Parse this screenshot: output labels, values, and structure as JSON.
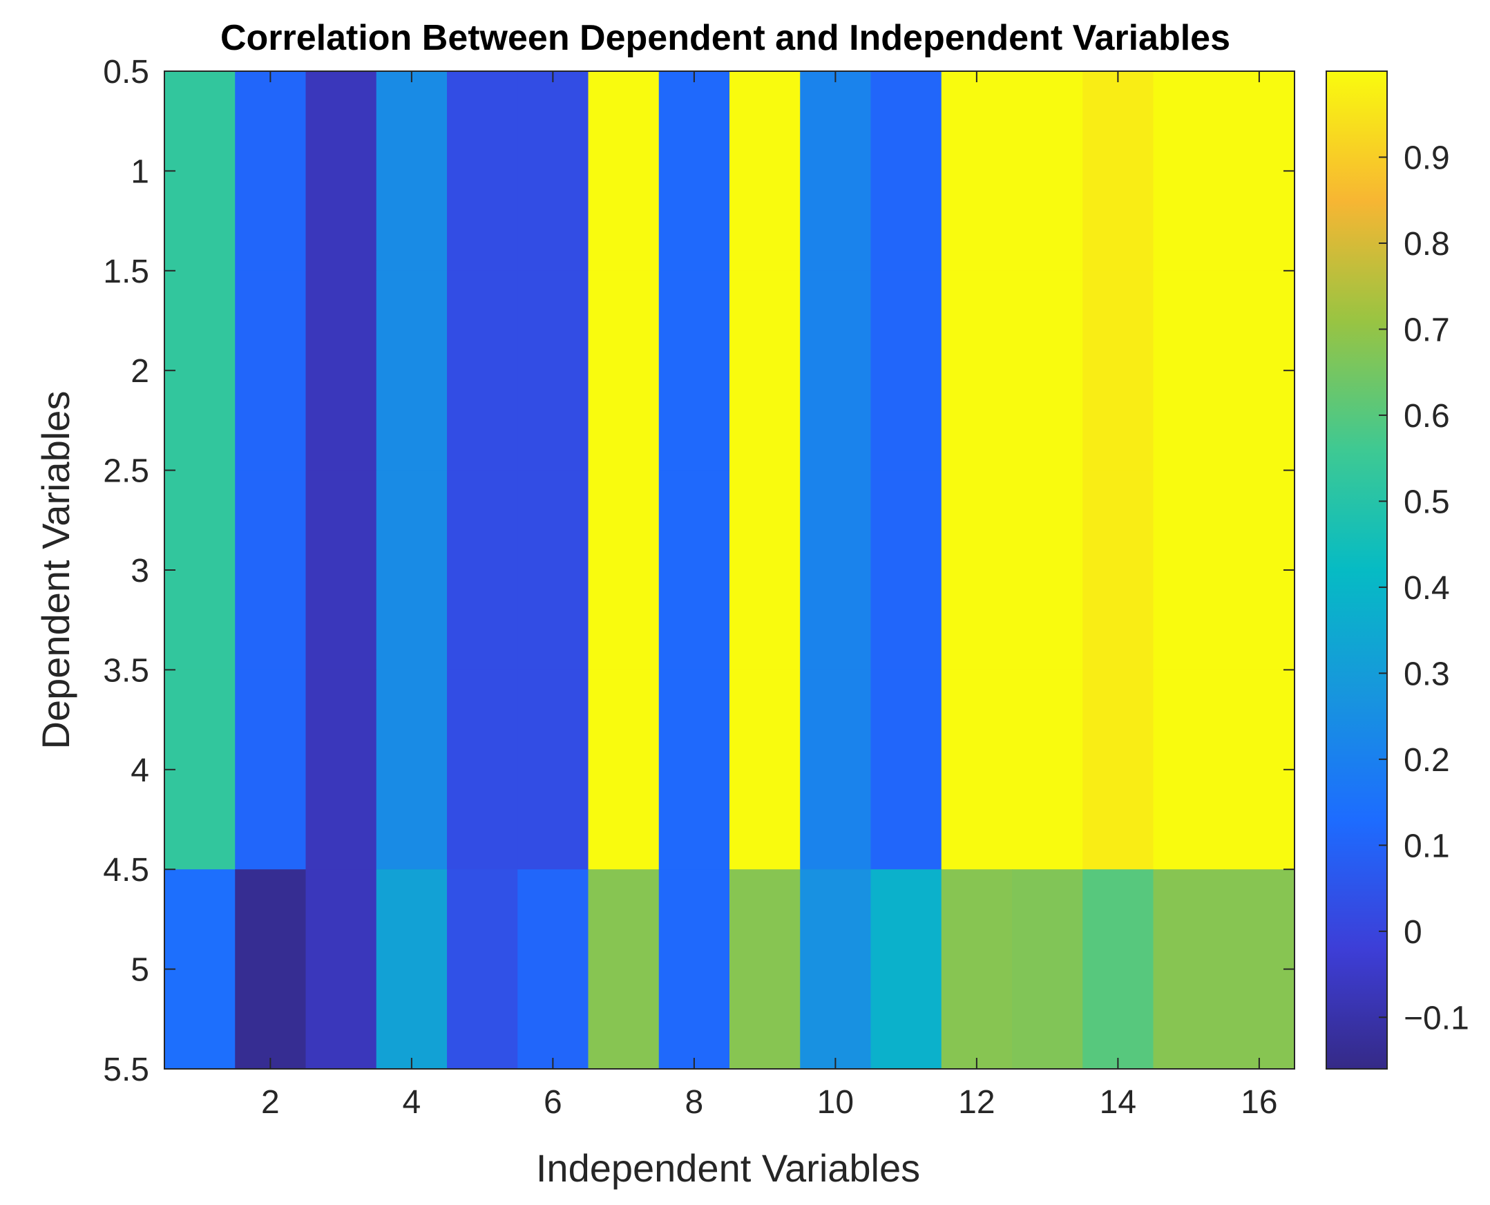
{
  "chart_data": {
    "type": "heatmap",
    "title": "Correlation Between Dependent and Independent Variables",
    "xlabel": "Independent Variables",
    "ylabel": "Dependent Variables",
    "x": [
      1,
      2,
      3,
      4,
      5,
      6,
      7,
      8,
      9,
      10,
      11,
      12,
      13,
      14,
      15,
      16
    ],
    "y": [
      1,
      2,
      3,
      4,
      5
    ],
    "xlim": [
      0.5,
      16.5
    ],
    "ylim": [
      0.5,
      5.5
    ],
    "y_reversed": true,
    "x_ticks": [
      "2",
      "4",
      "6",
      "8",
      "10",
      "12",
      "14",
      "16"
    ],
    "y_ticks": [
      "0.5",
      "1",
      "1.5",
      "2",
      "2.5",
      "3",
      "3.5",
      "4",
      "4.5",
      "5",
      "5.5"
    ],
    "values": [
      [
        0.53,
        0.11,
        -0.07,
        0.24,
        0.03,
        0.03,
        1.0,
        0.12,
        1.0,
        0.21,
        0.11,
        1.0,
        1.0,
        0.97,
        1.0,
        1.0
      ],
      [
        0.53,
        0.11,
        -0.07,
        0.24,
        0.03,
        0.03,
        1.0,
        0.12,
        1.0,
        0.21,
        0.11,
        1.0,
        1.0,
        0.97,
        1.0,
        1.0
      ],
      [
        0.53,
        0.11,
        -0.07,
        0.24,
        0.03,
        0.03,
        1.0,
        0.12,
        1.0,
        0.21,
        0.11,
        1.0,
        1.0,
        0.97,
        1.0,
        1.0
      ],
      [
        0.53,
        0.11,
        -0.07,
        0.24,
        0.03,
        0.03,
        1.0,
        0.12,
        1.0,
        0.21,
        0.11,
        1.0,
        1.0,
        0.97,
        1.0,
        1.0
      ],
      [
        0.14,
        -0.14,
        -0.07,
        0.32,
        0.04,
        0.11,
        0.68,
        0.12,
        0.68,
        0.26,
        0.38,
        0.68,
        0.67,
        0.6,
        0.68,
        0.68
      ]
    ],
    "colorbar": {
      "min": -0.16,
      "max": 1.0,
      "colormap": "parula",
      "ticks": [
        "-0.1",
        "0",
        "0.1",
        "0.2",
        "0.3",
        "0.4",
        "0.5",
        "0.6",
        "0.7",
        "0.8",
        "0.9"
      ],
      "tick_values": [
        -0.1,
        0,
        0.1,
        0.2,
        0.3,
        0.4,
        0.5,
        0.6,
        0.7,
        0.8,
        0.9
      ]
    },
    "grid": false
  }
}
